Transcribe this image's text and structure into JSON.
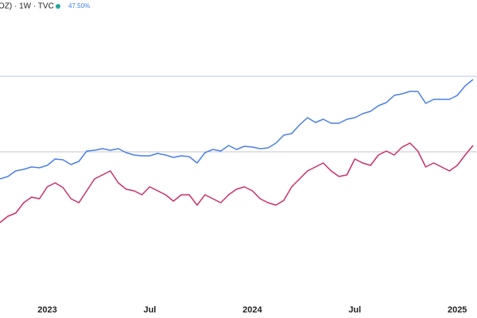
{
  "header": {
    "title": "OZ) · 1W · TVC",
    "change": "47.50%",
    "dot_color": "#26a69a"
  },
  "chart_data": {
    "type": "line",
    "x": [
      -12,
      -10,
      -8,
      -6,
      -4,
      -2,
      0,
      2,
      4,
      6,
      8,
      10,
      12,
      14,
      16,
      18,
      20,
      22,
      24,
      26,
      28,
      30,
      32,
      34,
      36,
      38,
      40,
      42,
      44,
      46,
      48,
      50,
      52,
      54,
      56,
      58,
      60,
      62,
      64,
      66,
      68,
      70,
      72,
      74,
      76,
      78,
      80,
      82,
      84,
      86,
      88,
      90,
      92,
      94,
      96,
      98,
      100,
      102,
      104,
      106,
      108
    ],
    "xlim": [
      -12,
      109
    ],
    "xticks": [
      {
        "value": 0,
        "label": "2023"
      },
      {
        "value": 26,
        "label": "Jul"
      },
      {
        "value": 52,
        "label": "2024"
      },
      {
        "value": 78,
        "label": "Jul"
      },
      {
        "value": 104,
        "label": "2025"
      }
    ],
    "ylim": [
      -89.5,
      95.5
    ],
    "hlines": [
      {
        "value": 0,
        "color": "#c4c4cc"
      },
      {
        "value": 47.5,
        "color": "#b8c6f2"
      }
    ],
    "series": [
      {
        "color": "#4a7fe8",
        "values": [
          -17,
          -15.5,
          -12,
          -11,
          -9.5,
          -10,
          -8.5,
          -4.5,
          -5,
          -8,
          -6,
          0.5,
          1,
          2,
          1,
          2,
          -0.5,
          -2,
          -2.5,
          -2.5,
          -1,
          -2,
          -3.5,
          -2.5,
          -3,
          -7,
          -0.5,
          1.5,
          0.5,
          4,
          1.5,
          3.5,
          3,
          2,
          2.5,
          5.5,
          10.5,
          11.5,
          17,
          21.5,
          18.5,
          20.5,
          18,
          18,
          20.5,
          21.5,
          24,
          25.5,
          29,
          31,
          35.5,
          36.5,
          38,
          38,
          30.5,
          33,
          33,
          33,
          35.5,
          41.5,
          45.5
        ]
      },
      {
        "color": "#cc2f6a",
        "values": [
          -44.5,
          -40.5,
          -38.5,
          -32,
          -28.5,
          -29.5,
          -22,
          -19.5,
          -22.5,
          -29.5,
          -32,
          -24.5,
          -17,
          -14.5,
          -12,
          -19.5,
          -23.5,
          -24.5,
          -27,
          -22,
          -24.5,
          -27,
          -31,
          -27,
          -27,
          -33.5,
          -27,
          -29.5,
          -32,
          -27,
          -23.5,
          -22,
          -24.5,
          -29.5,
          -32,
          -33.5,
          -30.5,
          -22,
          -17,
          -12,
          -9.5,
          -7,
          -12,
          -15.5,
          -14.5,
          -4.5,
          -7,
          -8.5,
          -2,
          0.5,
          -2,
          3,
          5.5,
          0.5,
          -9.5,
          -7,
          -9.5,
          -12,
          -8.5,
          -2,
          4
        ]
      }
    ]
  }
}
